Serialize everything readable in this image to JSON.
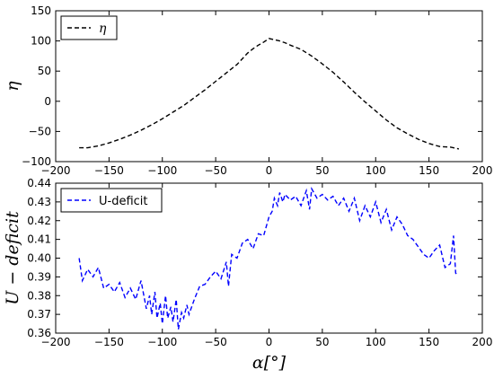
{
  "chart_data": [
    {
      "type": "line",
      "xlabel": "",
      "ylabel": "η",
      "xlim": [
        -200,
        200
      ],
      "ylim": [
        -100,
        150
      ],
      "xticks": [
        -200,
        -150,
        -100,
        -50,
        0,
        50,
        100,
        150,
        200
      ],
      "yticks": [
        -100,
        -50,
        0,
        50,
        100,
        150
      ],
      "grid": false,
      "legend_position": "top-left",
      "series": [
        {
          "name": "η",
          "color": "#000000",
          "dash": "dashed",
          "x": [
            -178,
            -170,
            -160,
            -150,
            -140,
            -130,
            -120,
            -110,
            -100,
            -90,
            -80,
            -70,
            -60,
            -50,
            -40,
            -30,
            -20,
            -15,
            -10,
            -5,
            0,
            5,
            10,
            15,
            20,
            30,
            40,
            50,
            60,
            70,
            80,
            90,
            100,
            110,
            120,
            130,
            140,
            150,
            160,
            170,
            178
          ],
          "y": [
            -77,
            -77,
            -74,
            -69,
            -63,
            -56,
            -48,
            -39,
            -29,
            -18,
            -7,
            6,
            19,
            33,
            47,
            61,
            80,
            87,
            93,
            98,
            104,
            102,
            100,
            97,
            93,
            86,
            75,
            62,
            48,
            32,
            15,
            -1,
            -16,
            -31,
            -44,
            -54,
            -63,
            -70,
            -75,
            -76,
            -79
          ]
        }
      ]
    },
    {
      "type": "line",
      "xlabel": "α[°]",
      "ylabel": "U − deficit",
      "xlim": [
        -200,
        200
      ],
      "ylim": [
        0.36,
        0.44
      ],
      "xticks": [
        -200,
        -150,
        -100,
        -50,
        0,
        50,
        100,
        150,
        200
      ],
      "yticks": [
        0.36,
        0.37,
        0.38,
        0.39,
        0.4,
        0.41,
        0.42,
        0.43,
        0.44
      ],
      "grid": false,
      "legend_position": "top-left",
      "series": [
        {
          "name": "U-deficit",
          "color": "#0000ff",
          "dash": "dashed",
          "x": [
            -178,
            -175,
            -170,
            -165,
            -160,
            -155,
            -150,
            -145,
            -140,
            -135,
            -130,
            -125,
            -120,
            -115,
            -112,
            -110,
            -107,
            -105,
            -102,
            -100,
            -97,
            -95,
            -92,
            -90,
            -87,
            -85,
            -82,
            -80,
            -77,
            -75,
            -70,
            -65,
            -60,
            -55,
            -50,
            -45,
            -40,
            -38,
            -35,
            -30,
            -25,
            -20,
            -15,
            -10,
            -5,
            0,
            3,
            5,
            8,
            10,
            13,
            15,
            20,
            25,
            30,
            35,
            38,
            40,
            45,
            50,
            55,
            60,
            65,
            70,
            75,
            80,
            85,
            90,
            95,
            100,
            105,
            110,
            115,
            120,
            125,
            130,
            135,
            140,
            145,
            150,
            155,
            160,
            165,
            170,
            173,
            175,
            177
          ],
          "y": [
            0.4,
            0.388,
            0.394,
            0.39,
            0.395,
            0.384,
            0.386,
            0.382,
            0.387,
            0.379,
            0.384,
            0.378,
            0.388,
            0.373,
            0.38,
            0.37,
            0.382,
            0.368,
            0.376,
            0.365,
            0.38,
            0.368,
            0.374,
            0.366,
            0.378,
            0.362,
            0.371,
            0.368,
            0.375,
            0.37,
            0.378,
            0.385,
            0.386,
            0.39,
            0.393,
            0.389,
            0.398,
            0.385,
            0.402,
            0.4,
            0.408,
            0.41,
            0.405,
            0.413,
            0.412,
            0.422,
            0.425,
            0.432,
            0.428,
            0.435,
            0.43,
            0.434,
            0.431,
            0.433,
            0.428,
            0.436,
            0.426,
            0.437,
            0.432,
            0.434,
            0.431,
            0.433,
            0.428,
            0.432,
            0.425,
            0.432,
            0.42,
            0.428,
            0.422,
            0.43,
            0.419,
            0.426,
            0.415,
            0.422,
            0.418,
            0.412,
            0.41,
            0.406,
            0.402,
            0.4,
            0.404,
            0.407,
            0.395,
            0.397,
            0.412,
            0.392,
            0.391
          ]
        }
      ]
    }
  ]
}
